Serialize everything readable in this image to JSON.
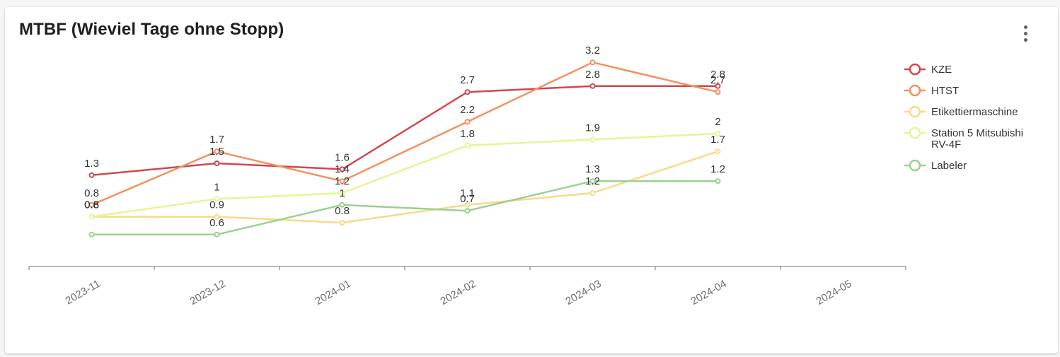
{
  "card": {
    "title": "MTBF (Wieviel Tage ohne Stopp)",
    "menu_icon": "more-vertical-icon"
  },
  "chart_data": {
    "type": "line",
    "title": "MTBF (Wieviel Tage ohne Stopp)",
    "categories": [
      "2023-11",
      "2023-12",
      "2024-01",
      "2024-02",
      "2024-03",
      "2024-04",
      "2024-05"
    ],
    "ylim": [
      0,
      3.5
    ],
    "grid": false,
    "legend_position": "right",
    "series": [
      {
        "name": "KZE",
        "color": "#d2474f",
        "values": [
          1.3,
          1.5,
          1.4,
          2.7,
          2.8,
          2.8,
          null
        ]
      },
      {
        "name": "HTST",
        "color": "#f3915e",
        "values": [
          0.8,
          1.7,
          1.2,
          2.2,
          3.2,
          2.7,
          null
        ]
      },
      {
        "name": "Etikettiermaschine",
        "color": "#f9d98a",
        "values": [
          0.6,
          0.6,
          0.5,
          0.8,
          1.0,
          1.7,
          null
        ]
      },
      {
        "name": "Station 5 Mitsubishi RV-4F",
        "color": "#e9f297",
        "values": [
          0.6,
          0.9,
          1.0,
          1.8,
          1.9,
          2.0,
          null
        ]
      },
      {
        "name": "Labeler",
        "color": "#99d18f",
        "values": [
          0.3,
          0.3,
          0.8,
          0.7,
          1.2,
          1.2,
          null
        ]
      }
    ],
    "data_labels": [
      {
        "category": "2023-11",
        "texts": [
          "1.3",
          "0.8",
          "0.8",
          "0.6"
        ]
      },
      {
        "category": "2023-12",
        "texts": [
          "1.7",
          "1.5",
          "1",
          "0.9",
          "0.6"
        ]
      },
      {
        "category": "2024-01",
        "texts": [
          "1.6",
          "1.4",
          "1.2",
          "1",
          "0.8"
        ]
      },
      {
        "category": "2024-02",
        "texts": [
          "2.7",
          "2.2",
          "1.8",
          "1.1",
          "0.7"
        ]
      },
      {
        "category": "2024-03",
        "texts": [
          "3.2",
          "2.8",
          "1.9",
          "1.3",
          "1.2"
        ]
      },
      {
        "category": "2024-04",
        "texts": [
          "2.8",
          "2.7",
          "2",
          "1.7",
          "1.2"
        ]
      }
    ]
  }
}
